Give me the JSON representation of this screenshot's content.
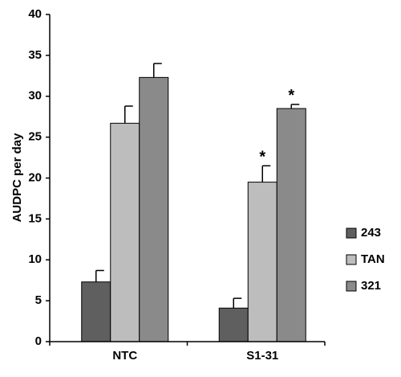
{
  "chart_data": {
    "type": "bar",
    "y_label": "AUDPC per day",
    "categories": [
      "NTC",
      "S1-31"
    ],
    "series": [
      {
        "name": "243",
        "color": "#5f5f5f",
        "values": [
          7.3,
          4.1
        ],
        "errors": [
          1.4,
          1.2
        ]
      },
      {
        "name": "TAN",
        "color": "#bdbdbd",
        "values": [
          26.7,
          19.5
        ],
        "errors": [
          2.1,
          2.0
        ],
        "annotations": [
          null,
          "*"
        ]
      },
      {
        "name": "321",
        "color": "#8a8a8a",
        "values": [
          32.3,
          28.5
        ],
        "errors": [
          1.7,
          0.5
        ],
        "annotations": [
          null,
          "*"
        ]
      }
    ],
    "ylim": [
      0,
      40
    ],
    "yticks": [
      0,
      5,
      10,
      15,
      20,
      25,
      30,
      35,
      40
    ],
    "legend": "right"
  }
}
